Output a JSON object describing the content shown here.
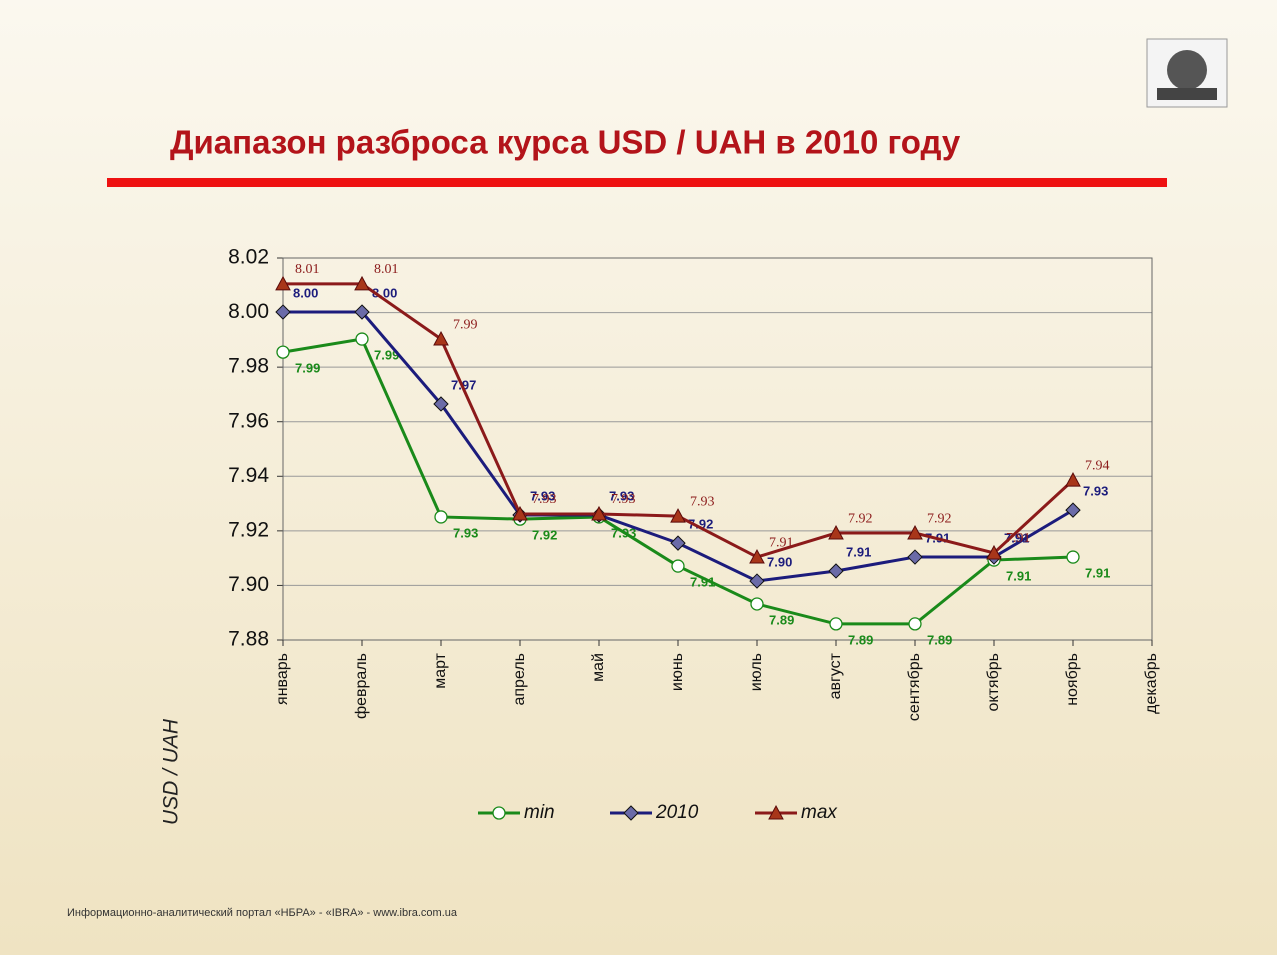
{
  "footer": "Информационно-аналитический портал «НБРА» - «IBRA» - www.ibra.com.ua",
  "chart_data": {
    "type": "line",
    "title": "Диапазон разброса курса USD / UAH в 2010 году",
    "y_label": "USD / UAH",
    "categories": [
      "январь",
      "февраль",
      "март",
      "апрель",
      "май",
      "июнь",
      "июль",
      "август",
      "сентябрь",
      "октябрь",
      "ноябрь",
      "декабрь"
    ],
    "ylim": [
      7.88,
      8.02
    ],
    "yticks": [
      7.88,
      {
        "value": 7.9,
        "label": "7.90"
      },
      7.92,
      7.94,
      7.96,
      7.98,
      {
        "value": 8.0,
        "label": "8.00"
      },
      8.02
    ],
    "grid": true,
    "legend": "bottom",
    "series": [
      {
        "name": "min",
        "color": "#1a8a1a",
        "marker": "circle",
        "values": [
          7.9855,
          7.9903,
          7.9251,
          7.9243,
          7.9251,
          7.9071,
          7.8932,
          7.8859,
          7.8859,
          7.9093,
          7.9104,
          null
        ],
        "value_labels": [
          "7.99",
          "7.99",
          "7.93",
          "7.92",
          "7.93",
          "7.91",
          "7.89",
          "7.89",
          "7.89",
          "7.91",
          "7.91",
          null
        ]
      },
      {
        "name": "2010",
        "color": "#1c1c7c",
        "marker": "diamond",
        "values": [
          8.0002,
          8.0002,
          7.9665,
          7.9258,
          7.9258,
          7.9155,
          7.9016,
          7.9053,
          7.9104,
          7.9104,
          7.9276,
          null
        ],
        "value_labels": [
          "8.00",
          "8.00",
          "7.97",
          "7.93",
          "7.93",
          "7.92",
          "7.90",
          "7.91",
          "7.91",
          "7.91",
          "7.93",
          null
        ]
      },
      {
        "name": "max",
        "color": "#8b1a1a",
        "marker": "triangle",
        "values": [
          8.0105,
          8.0105,
          7.9903,
          7.9262,
          7.9262,
          7.9254,
          7.9104,
          7.9192,
          7.9192,
          7.9119,
          7.9386,
          null
        ],
        "value_labels": [
          "8.01",
          "8.01",
          "7.99",
          "7.93",
          "7.93",
          "7.93",
          "7.91",
          "7.92",
          "7.92",
          "7.91",
          "7.94",
          null
        ]
      }
    ]
  }
}
